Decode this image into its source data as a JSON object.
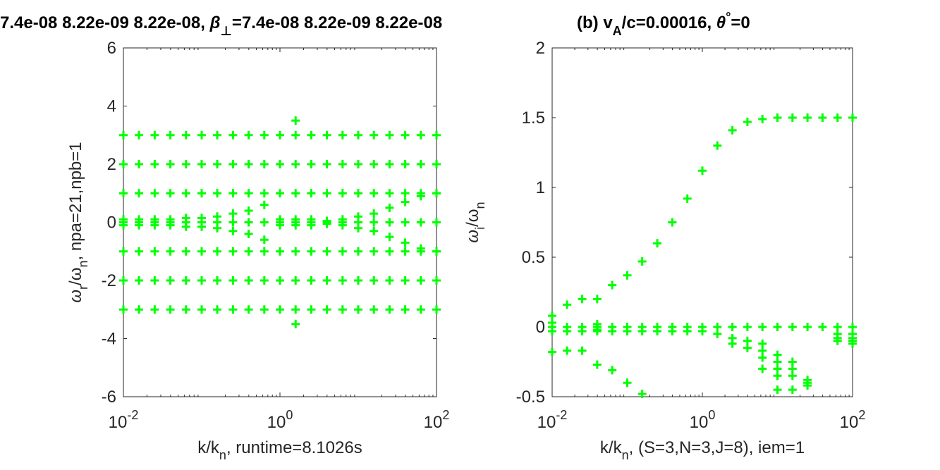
{
  "colors": {
    "marker": "#00ff00",
    "axis": "#262626",
    "background": "#ffffff"
  },
  "title": {
    "left": "7.4e-08  8.22e-09  8.22e-08, β⊥=7.4e-08  8.22e-09  8.22e-08",
    "right": "(b) vA/c=0.00016, θ°=0"
  },
  "chart_data": [
    {
      "type": "scatter",
      "marker": "+",
      "xscale": "log",
      "xlim": [
        0.01,
        100
      ],
      "ylim": [
        -6,
        6
      ],
      "xticks": [
        {
          "base": "10",
          "exp": "-2"
        },
        {
          "base": "10",
          "exp": "0"
        },
        {
          "base": "10",
          "exp": "2"
        }
      ],
      "yticks": [
        "-6",
        "-4",
        "-2",
        "0",
        "2",
        "4",
        "6"
      ],
      "xlabel": {
        "pre": "k/k",
        "sub": "n",
        "post": ", runtime=8.1026s"
      },
      "ylabel": {
        "a": "ω",
        "as": "r",
        "b": "/ω",
        "bs": "n",
        "post": ", npa=21,npb=1"
      },
      "x": [
        0.01,
        0.0158,
        0.0251,
        0.0398,
        0.0631,
        0.1,
        0.158,
        0.251,
        0.398,
        0.631,
        1.0,
        1.585,
        2.512,
        3.981,
        6.31,
        10.0,
        15.85,
        25.12,
        39.81,
        63.1,
        100.0
      ],
      "series": [
        {
          "values": [
            3,
            3,
            3,
            3,
            3,
            3,
            3,
            3,
            3,
            3,
            3,
            3,
            3,
            3,
            3,
            3,
            3,
            3,
            3,
            3,
            3
          ]
        },
        {
          "values": [
            2,
            2,
            2,
            2,
            2,
            2,
            2,
            2,
            2,
            2,
            2,
            2,
            2,
            2,
            2,
            2,
            2,
            2,
            2,
            2,
            2
          ]
        },
        {
          "values": [
            1,
            1,
            1,
            1,
            1,
            1,
            1,
            1,
            1,
            1,
            1,
            1,
            1,
            1,
            1,
            1,
            1,
            1,
            1,
            1,
            1
          ]
        },
        {
          "values": [
            0.1,
            0.1,
            0.1,
            0.1,
            0.15,
            0.15,
            0.2,
            0.3,
            0.4,
            0.6,
            0.1,
            0.1,
            0.1,
            0.05,
            0.1,
            0.2,
            0.3,
            0.5,
            0.7,
            0.9,
            1.0
          ]
        },
        {
          "values": [
            0,
            0,
            0,
            0,
            0,
            0,
            0,
            0,
            0,
            0,
            0,
            0,
            0,
            0,
            0,
            0,
            0,
            0,
            0,
            0,
            0
          ]
        },
        {
          "values": [
            -0.1,
            -0.1,
            -0.1,
            -0.1,
            -0.15,
            -0.15,
            -0.2,
            -0.3,
            -0.4,
            -0.6,
            -0.1,
            -0.1,
            -0.1,
            -0.05,
            -0.1,
            -0.2,
            -0.3,
            -0.5,
            -0.7,
            -0.9,
            -1.0
          ]
        },
        {
          "values": [
            -1,
            -1,
            -1,
            -1,
            -1,
            -1,
            -1,
            -1,
            -1,
            -1,
            -1,
            -1,
            -1,
            -1,
            -1,
            -1,
            -1,
            -1,
            -1,
            -1,
            -1
          ]
        },
        {
          "values": [
            -2,
            -2,
            -2,
            -2,
            -2,
            -2,
            -2,
            -2,
            -2,
            -2,
            -2,
            -2,
            -2,
            -2,
            -2,
            -2,
            -2,
            -2,
            -2,
            -2,
            -2
          ]
        },
        {
          "values": [
            -3,
            -3,
            -3,
            -3,
            -3,
            -3,
            -3,
            -3,
            -3,
            -3,
            -3,
            -3,
            -3,
            -3,
            -3,
            -3,
            -3,
            -3,
            -3,
            -3,
            -3
          ]
        }
      ],
      "extra_points": [
        [
          1.585,
          3.5
        ],
        [
          1.585,
          -3.5
        ]
      ]
    },
    {
      "type": "scatter",
      "marker": "+",
      "xscale": "log",
      "xlim": [
        0.01,
        100
      ],
      "ylim": [
        -0.5,
        2
      ],
      "xticks": [
        {
          "base": "10",
          "exp": "-2"
        },
        {
          "base": "10",
          "exp": "0"
        },
        {
          "base": "10",
          "exp": "2"
        }
      ],
      "yticks": [
        "-0.5",
        "0",
        "0.5",
        "1",
        "1.5",
        "2"
      ],
      "xlabel": {
        "pre": "k/k",
        "sub": "n",
        "post": ", (S=3,N=3,J=8), iem=1"
      },
      "ylabel": {
        "a": "ω",
        "as": "i",
        "b": "/ω",
        "bs": "n",
        "post": ""
      },
      "x": [
        0.01,
        0.0158,
        0.0251,
        0.0398,
        0.0631,
        0.1,
        0.158,
        0.251,
        0.398,
        0.631,
        1.0,
        1.585,
        2.512,
        3.981,
        6.31,
        10.0,
        15.85,
        25.12,
        39.81,
        63.1,
        100.0
      ],
      "series": [
        {
          "values": [
            0.08,
            0.16,
            0.2,
            0.2,
            0.3,
            0.37,
            0.47,
            0.6,
            0.75,
            0.92,
            1.12,
            1.3,
            1.41,
            1.47,
            1.49,
            1.5,
            1.5,
            1.5,
            1.5,
            1.5,
            1.5
          ]
        },
        {
          "values": [
            0,
            0,
            0,
            0,
            0,
            0,
            0,
            0,
            0,
            0,
            0,
            0,
            0,
            0,
            0,
            0,
            0,
            0,
            0,
            0,
            0
          ]
        },
        {
          "values": [
            -0.03,
            -0.03,
            -0.03,
            -0.03,
            -0.03,
            -0.03,
            -0.03,
            -0.03,
            -0.03,
            -0.03,
            -0.03,
            -0.05,
            -0.08,
            -0.1,
            -0.12,
            -0.2,
            -0.25,
            -0.38,
            null,
            -0.05,
            -0.05
          ]
        },
        {
          "values": [
            -0.18,
            -0.17,
            -0.17,
            -0.27,
            -0.31,
            -0.4,
            -0.48,
            null,
            null,
            null,
            null,
            null,
            null,
            null,
            null,
            -0.3,
            -0.35,
            -0.42,
            null,
            -0.1,
            -0.12
          ]
        }
      ],
      "extra_points": [
        [
          0.01,
          0.03
        ],
        [
          0.0398,
          0.02
        ],
        [
          0.0398,
          -0.02
        ],
        [
          2.512,
          -0.12
        ],
        [
          3.981,
          -0.15
        ],
        [
          6.31,
          -0.17
        ],
        [
          6.31,
          -0.22
        ],
        [
          6.31,
          -0.3
        ],
        [
          10.0,
          -0.25
        ],
        [
          10.0,
          -0.3
        ],
        [
          10.0,
          -0.35
        ],
        [
          10.0,
          -0.45
        ],
        [
          15.85,
          -0.3
        ],
        [
          15.85,
          -0.45
        ],
        [
          25.12,
          -0.4
        ],
        [
          63.1,
          -0.08
        ],
        [
          100.0,
          -0.1
        ],
        [
          100.0,
          -0.08
        ]
      ]
    }
  ]
}
